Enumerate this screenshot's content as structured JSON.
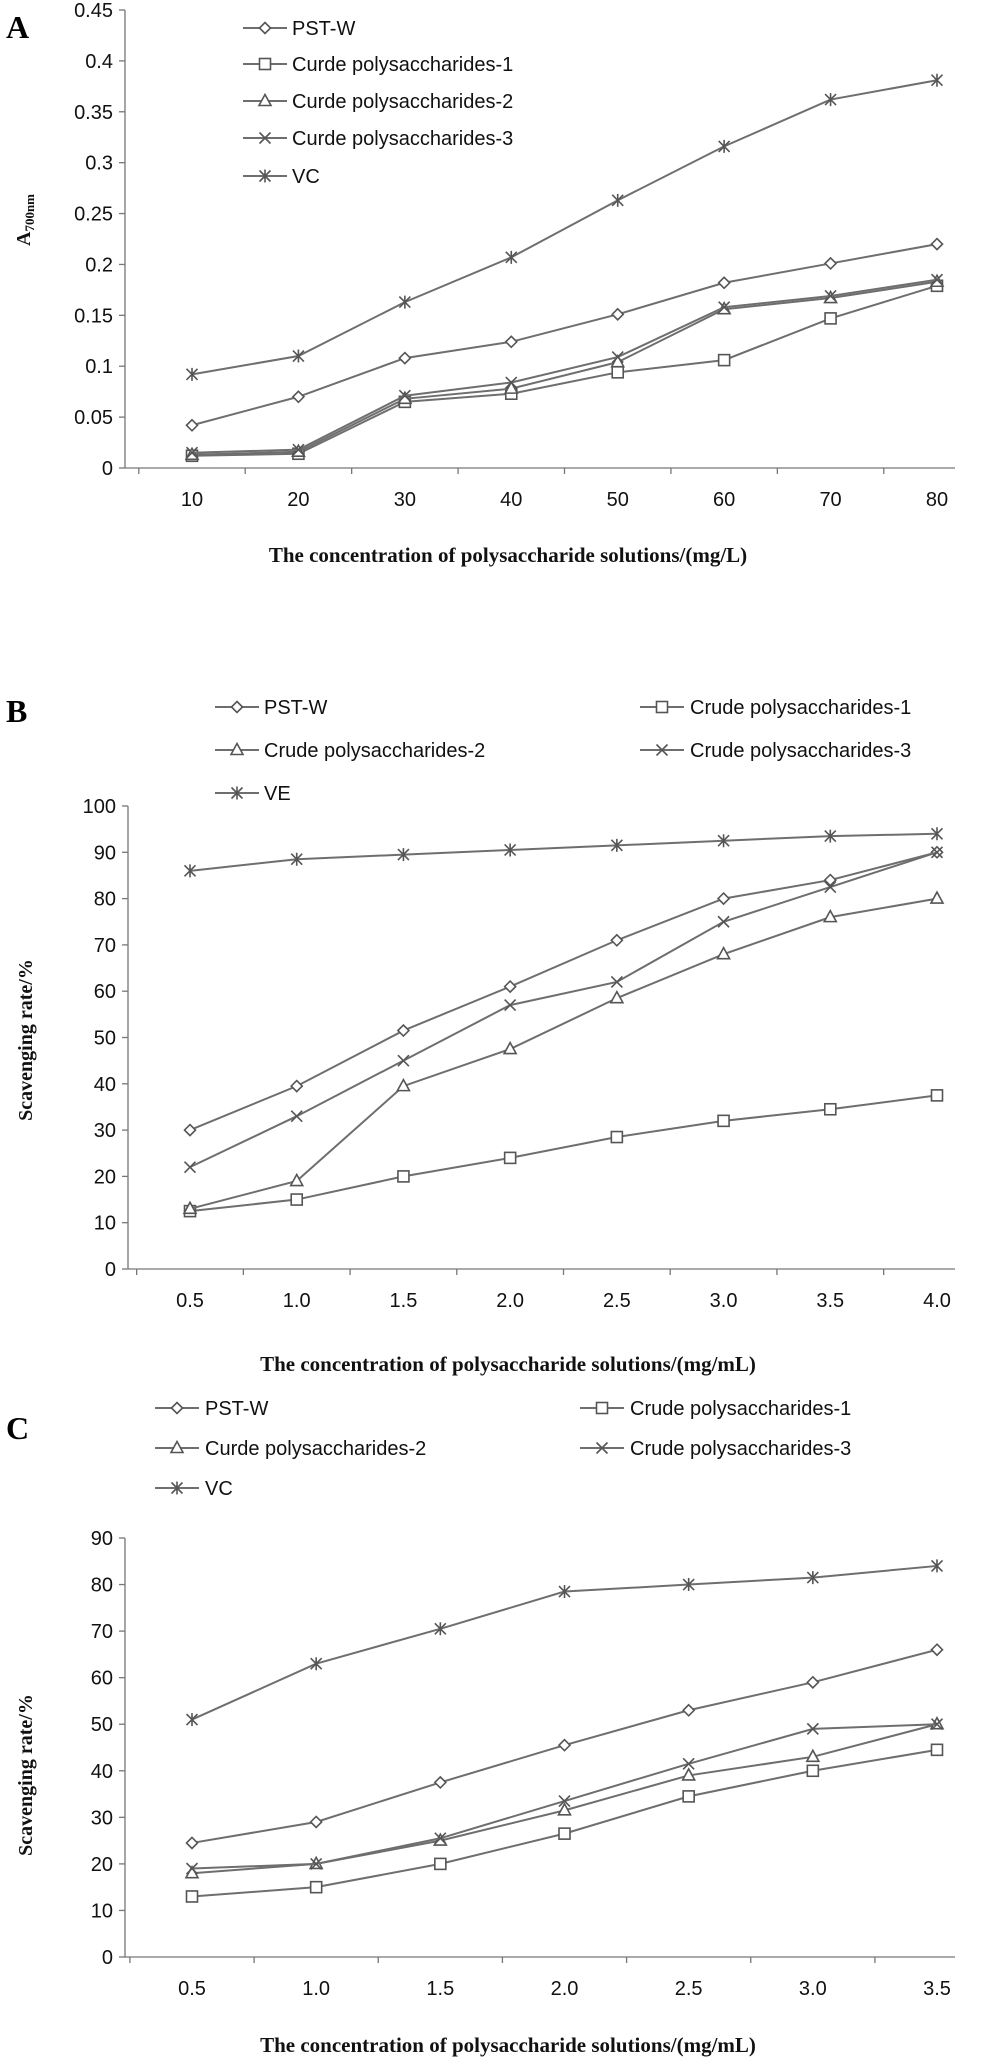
{
  "chart_data": [
    {
      "panel": "A",
      "type": "line",
      "ylabel": "A700nm",
      "ylabel_main": "A",
      "ylabel_sub": "700nm",
      "xlabel": "The concentration of polysaccharide solutions/(mg/L)",
      "categories": [
        "10",
        "20",
        "30",
        "40",
        "50",
        "60",
        "70",
        "80"
      ],
      "ylim": [
        0,
        0.45
      ],
      "yticks": [
        "0",
        "0.05",
        "0.1",
        "0.15",
        "0.2",
        "0.25",
        "0.3",
        "0.35",
        "0.4",
        "0.45"
      ],
      "legend_placement": "top-left",
      "series": [
        {
          "name": "PST-W",
          "marker": "diamond",
          "values": [
            0.042,
            0.07,
            0.108,
            0.124,
            0.151,
            0.182,
            0.201,
            0.22
          ]
        },
        {
          "name": "Curde polysaccharides-1",
          "marker": "square",
          "values": [
            0.012,
            0.014,
            0.065,
            0.073,
            0.094,
            0.106,
            0.147,
            0.179
          ]
        },
        {
          "name": "Curde polysaccharides-2",
          "marker": "triangle",
          "values": [
            0.013,
            0.016,
            0.068,
            0.078,
            0.104,
            0.156,
            0.167,
            0.183
          ]
        },
        {
          "name": "Curde polysaccharides-3",
          "marker": "x",
          "values": [
            0.015,
            0.018,
            0.071,
            0.084,
            0.109,
            0.158,
            0.169,
            0.185
          ]
        },
        {
          "name": "VC",
          "marker": "star",
          "values": [
            0.092,
            0.11,
            0.163,
            0.207,
            0.263,
            0.316,
            0.362,
            0.381
          ]
        }
      ]
    },
    {
      "panel": "B",
      "type": "line",
      "ylabel": "Scavenging rate/%",
      "xlabel": "The concentration of polysaccharide solutions/(mg/mL)",
      "categories": [
        "0.5",
        "1.0",
        "1.5",
        "2.0",
        "2.5",
        "3.0",
        "3.5",
        "4.0"
      ],
      "ylim": [
        0,
        100
      ],
      "yticks": [
        "0",
        "10",
        "20",
        "30",
        "40",
        "50",
        "60",
        "70",
        "80",
        "90",
        "100"
      ],
      "legend_placement": "top",
      "series": [
        {
          "name": "PST-W",
          "marker": "diamond",
          "values": [
            30,
            39.5,
            51.5,
            61,
            71,
            80,
            84,
            90
          ]
        },
        {
          "name": "Crude polysaccharides-1",
          "marker": "square",
          "values": [
            12.5,
            15,
            20,
            24,
            28.5,
            32,
            34.5,
            37.5
          ]
        },
        {
          "name": "Crude polysaccharides-2",
          "marker": "triangle",
          "values": [
            13,
            19,
            39.5,
            47.5,
            58.5,
            68,
            76,
            80
          ]
        },
        {
          "name": "Crude polysaccharides-3",
          "marker": "x",
          "values": [
            22,
            33,
            45,
            57,
            62,
            75,
            82.5,
            90
          ]
        },
        {
          "name": "VE",
          "marker": "star",
          "values": [
            86,
            88.5,
            89.5,
            90.5,
            91.5,
            92.5,
            93.5,
            94
          ]
        }
      ]
    },
    {
      "panel": "C",
      "type": "line",
      "ylabel": "Scavenging rate/%",
      "xlabel": "The concentration of polysaccharide solutions/(mg/mL)",
      "categories": [
        "0.5",
        "1.0",
        "1.5",
        "2.0",
        "2.5",
        "3.0",
        "3.5"
      ],
      "ylim": [
        0,
        90
      ],
      "yticks": [
        "0",
        "10",
        "20",
        "30",
        "40",
        "50",
        "60",
        "70",
        "80",
        "90"
      ],
      "legend_placement": "top",
      "series": [
        {
          "name": "PST-W",
          "marker": "diamond",
          "values": [
            24.5,
            29,
            37.5,
            45.5,
            53,
            59,
            66
          ]
        },
        {
          "name": "Crude polysaccharides-1",
          "marker": "square",
          "values": [
            13,
            15,
            20,
            26.5,
            34.5,
            40,
            44.5
          ]
        },
        {
          "name": "Curde polysaccharides-2",
          "marker": "triangle",
          "values": [
            18,
            20,
            25,
            31.5,
            39,
            43,
            50
          ]
        },
        {
          "name": "Crude polysaccharides-3",
          "marker": "x",
          "values": [
            19,
            20,
            25.5,
            33.5,
            41.5,
            49,
            50
          ]
        },
        {
          "name": "VC",
          "marker": "star",
          "values": [
            51,
            63,
            70.5,
            78.5,
            80,
            81.5,
            84
          ]
        }
      ]
    }
  ]
}
